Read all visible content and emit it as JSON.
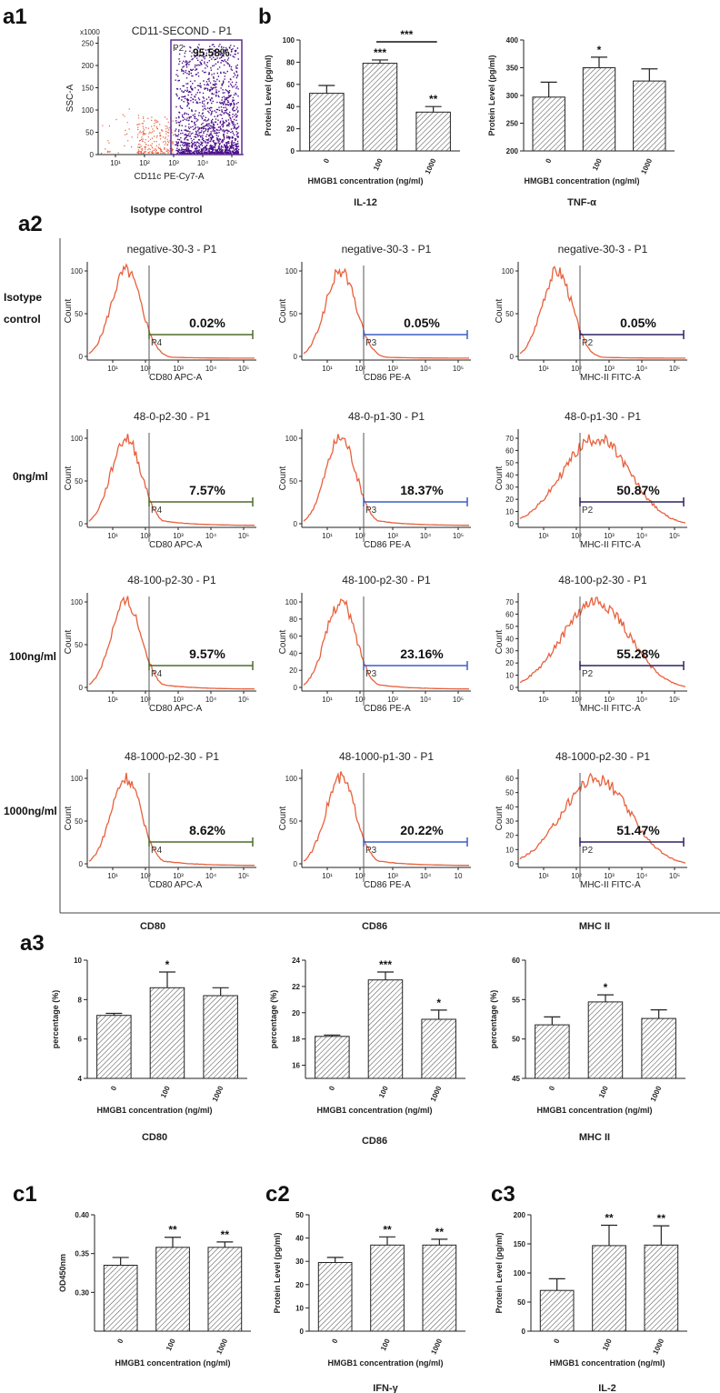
{
  "panel_labels": {
    "a1": "a1",
    "b": "b",
    "a2": "a2",
    "a3": "a3",
    "c1": "c1",
    "c2": "c2",
    "c3": "c3"
  },
  "colors": {
    "histogram": "#e8603c",
    "dots_main": "#4b0f8a",
    "dots_out": "#e8603c",
    "gate_purple": "#5b2d8e",
    "gate_green": "#4e6b2a",
    "gate_blue": "#3b5fc4",
    "gate_navy": "#2a2366"
  },
  "a1": {
    "title": "CD11-SECOND - P1",
    "ylabel": "SSC-A",
    "xlabel": "CD11c PE-Cy7-A",
    "yscale_label": "x1000",
    "yticks": [
      "0",
      "50",
      "100",
      "150",
      "200",
      "250"
    ],
    "xticks": [
      "10¹",
      "10²",
      "10³",
      "10⁴",
      "10⁵"
    ],
    "gate_name": "P2",
    "gate_pct": "95.58%",
    "caption": "Isotype control"
  },
  "row_labels": {
    "isotype_1": "Isotype",
    "isotype_2": "control",
    "r0": "0ng/ml",
    "r100": "100ng/ml",
    "r1000": "1000ng/ml"
  },
  "column_labels": [
    "CD80",
    "CD86",
    "MHC II"
  ],
  "flow_xticks": [
    "10¹",
    "10²",
    "10³",
    "10⁴",
    "10⁵"
  ],
  "flow_xticks_alt": [
    "10¹",
    "10²",
    "10³",
    "10⁴",
    "10"
  ],
  "count_label": "Count",
  "flow_panels": [
    {
      "title": "negative-30-3 - P1",
      "xlabel": "CD80 APC-A",
      "gate": "P4",
      "pct": "0.02%",
      "yticks": [
        "0",
        "50",
        "100"
      ]
    },
    {
      "title": "negative-30-3 - P1",
      "xlabel": "CD86 PE-A",
      "gate": "P3",
      "pct": "0.05%",
      "yticks": [
        "0",
        "50",
        "100"
      ]
    },
    {
      "title": "negative-30-3 - P1",
      "xlabel": "MHC-II FITC-A",
      "gate": "P2",
      "pct": "0.05%",
      "yticks": [
        "0",
        "50",
        "100"
      ]
    },
    {
      "title": "48-0-p2-30 - P1",
      "xlabel": "CD80 APC-A",
      "gate": "P4",
      "pct": "7.57%",
      "yticks": [
        "0",
        "50",
        "100"
      ]
    },
    {
      "title": "48-0-p1-30 - P1",
      "xlabel": "CD86 PE-A",
      "gate": "P3",
      "pct": "18.37%",
      "yticks": [
        "0",
        "50",
        "100"
      ]
    },
    {
      "title": "48-0-p1-30 - P1",
      "xlabel": "MHC-II FITC-A",
      "gate": "P2",
      "pct": "50.87%",
      "yticks": [
        "0",
        "10",
        "20",
        "30",
        "40",
        "50",
        "60",
        "70"
      ]
    },
    {
      "title": "48-100-p2-30 - P1",
      "xlabel": "CD80 APC-A",
      "gate": "P4",
      "pct": "9.57%",
      "yticks": [
        "0",
        "50",
        "100"
      ]
    },
    {
      "title": "48-100-p2-30 - P1",
      "xlabel": "CD86 PE-A",
      "gate": "P3",
      "pct": "23.16%",
      "yticks": [
        "0",
        "20",
        "40",
        "60",
        "80",
        "100"
      ]
    },
    {
      "title": "48-100-p2-30 - P1",
      "xlabel": "MHC-II FITC-A",
      "gate": "P2",
      "pct": "55.28%",
      "yticks": [
        "0",
        "10",
        "20",
        "30",
        "40",
        "50",
        "60",
        "70"
      ]
    },
    {
      "title": "48-1000-p2-30 - P1",
      "xlabel": "CD80 APC-A",
      "gate": "P4",
      "pct": "8.62%",
      "yticks": [
        "0",
        "50",
        "100"
      ]
    },
    {
      "title": "48-1000-p1-30 - P1",
      "xlabel": "CD86 PE-A",
      "gate": "P3",
      "pct": "20.22%",
      "yticks": [
        "0",
        "50",
        "100"
      ]
    },
    {
      "title": "48-1000-p2-30 - P1",
      "xlabel": "MHC-II FITC-A",
      "gate": "P2",
      "pct": "51.47%",
      "yticks": [
        "0",
        "10",
        "20",
        "30",
        "40",
        "50",
        "60"
      ]
    }
  ],
  "chart_data": [
    {
      "id": "b_il12",
      "type": "bar",
      "categories": [
        "0",
        "100",
        "1000"
      ],
      "values": [
        52,
        79,
        35
      ],
      "errors": [
        7,
        3,
        5
      ],
      "ylim": [
        0,
        100
      ],
      "yticks": [
        0,
        20,
        40,
        60,
        80,
        100
      ],
      "ylabel": "Protein Level (pg/ml)",
      "xlabel": "HMGB1 concentration (ng/ml)",
      "caption": "IL-12",
      "sig": [
        "",
        "***",
        "**"
      ],
      "bracket": "***"
    },
    {
      "id": "b_tnf",
      "type": "bar",
      "categories": [
        "0",
        "100",
        "1000"
      ],
      "values": [
        297,
        350,
        326
      ],
      "errors": [
        27,
        19,
        22
      ],
      "ylim": [
        200,
        400
      ],
      "yticks": [
        200,
        250,
        300,
        350,
        400
      ],
      "ylabel": "Protein Level (pg/ml)",
      "xlabel": "HMGB1 concentration (ng/ml)",
      "caption": "TNF-α",
      "sig": [
        "",
        "*",
        ""
      ]
    },
    {
      "id": "a3_cd80",
      "type": "bar",
      "categories": [
        "0",
        "100",
        "1000"
      ],
      "values": [
        7.2,
        8.6,
        8.2
      ],
      "errors": [
        0.1,
        0.8,
        0.4
      ],
      "ylim": [
        4,
        10
      ],
      "yticks": [
        4,
        6,
        8,
        10
      ],
      "ylabel": "percentage (%)",
      "xlabel": "HMGB1 concentration (ng/ml)",
      "caption": "CD80",
      "sig": [
        "",
        "*",
        ""
      ]
    },
    {
      "id": "a3_cd86",
      "type": "bar",
      "categories": [
        "0",
        "100",
        "1000"
      ],
      "values": [
        18.2,
        22.5,
        19.5
      ],
      "errors": [
        0.1,
        0.6,
        0.7
      ],
      "ylim": [
        15,
        24
      ],
      "yticks": [
        16,
        18,
        20,
        22,
        24
      ],
      "ylabel": "percentage (%)",
      "xlabel": "HMGB1 concentration (ng/ml)",
      "caption": "CD86",
      "sig": [
        "",
        "***",
        "*"
      ]
    },
    {
      "id": "a3_mhc",
      "type": "bar",
      "categories": [
        "0",
        "100",
        "1000"
      ],
      "values": [
        51.8,
        54.7,
        52.6
      ],
      "errors": [
        1.0,
        0.9,
        1.1
      ],
      "ylim": [
        45,
        60
      ],
      "yticks": [
        45,
        50,
        55,
        60
      ],
      "ylabel": "percentage (%)",
      "xlabel": "HMGB1 concentration (ng/ml)",
      "caption": "MHC II",
      "sig": [
        "",
        "*",
        ""
      ]
    },
    {
      "id": "c1_od",
      "type": "bar",
      "categories": [
        "0",
        "100",
        "1000"
      ],
      "values": [
        0.335,
        0.358,
        0.358
      ],
      "errors": [
        0.01,
        0.013,
        0.007
      ],
      "ylim": [
        0.25,
        0.4
      ],
      "yticks": [
        0.3,
        0.35,
        0.4
      ],
      "yticklabels": [
        "0.30",
        "0.35",
        "0.40"
      ],
      "ylabel": "OD450nm",
      "xlabel": "HMGB1 concentration (ng/ml)",
      "caption": "",
      "sig": [
        "",
        "**",
        "**"
      ]
    },
    {
      "id": "c2_ifn",
      "type": "bar",
      "categories": [
        "0",
        "100",
        "1000"
      ],
      "values": [
        29.5,
        37,
        37
      ],
      "errors": [
        2.2,
        3.5,
        2.5
      ],
      "ylim": [
        0,
        50
      ],
      "yticks": [
        0,
        10,
        20,
        30,
        40,
        50
      ],
      "ylabel": "Protein Level (pg/ml)",
      "xlabel": "HMGB1 concentration (ng/ml)",
      "caption": "IFN-γ",
      "sig": [
        "",
        "**",
        "**"
      ]
    },
    {
      "id": "c3_il2",
      "type": "bar",
      "categories": [
        "0",
        "100",
        "1000"
      ],
      "values": [
        70,
        147,
        148
      ],
      "errors": [
        20,
        35,
        33
      ],
      "ylim": [
        0,
        200
      ],
      "yticks": [
        0,
        50,
        100,
        150,
        200
      ],
      "ylabel": "Protein Level (pg/ml)",
      "xlabel": "HMGB1 concentration (ng/ml)",
      "caption": "IL-2",
      "sig": [
        "",
        "**",
        "**"
      ]
    }
  ]
}
